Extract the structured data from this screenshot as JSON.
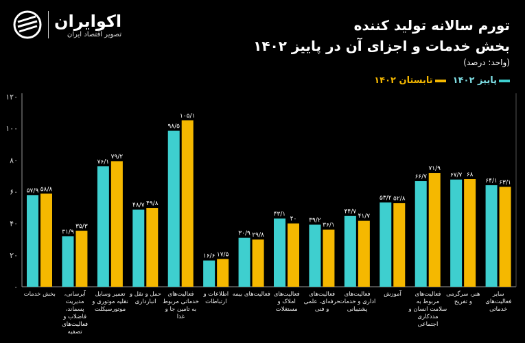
{
  "logo": {
    "name": "اکوایران",
    "tagline": "تصویر اقتصاد ایران"
  },
  "colors": {
    "autumn": "#3ecfcf",
    "summer": "#f5b800",
    "axis": "#bbbbbb"
  },
  "chart_data": {
    "type": "bar",
    "title": "تورم سالانه تولید کننده",
    "subtitle": "بخش خدمات و اجزای آن در پاییز ۱۴۰۲",
    "unit": "(واحد: درصد)",
    "ylim": [
      0,
      120
    ],
    "yticks": [
      0,
      20,
      40,
      60,
      80,
      100,
      120
    ],
    "ytick_labels": [
      "۰",
      "۲۰",
      "۴۰",
      "۶۰",
      "۸۰",
      "۱۰۰",
      "۱۲۰"
    ],
    "grid": false,
    "legend_position": "top-right",
    "categories": [
      "بخش خدمات",
      "آبرسانی، مدیریت پسماند، فاضلاب و فعالیت‌های تصفیه",
      "تعمیر وسایل نقلیه موتوری و موتورسیکلت",
      "حمل و نقل و انبارداری",
      "فعالیت‌های خدماتی مربوط به تامین جا و غذا",
      "اطلاعات و ارتباطات",
      "فعالیت‌های بیمه",
      "فعالیت‌های املاک و مستغلات",
      "فعالیت‌های حرفه‌ای، علمی و فنی",
      "فعالیت‌های اداری و خدمات پشتیبانی",
      "آموزش",
      "فعالیت‌های مربوط به سلامت انسان و مددکاری اجتماعی",
      "هنر، سرگرمی و تفریح",
      "سایر فعالیت‌های خدماتی"
    ],
    "series": [
      {
        "name": "پاییز ۱۴۰۲",
        "values": [
          57.9,
          31.9,
          76.1,
          48.7,
          98.5,
          16.6,
          30.9,
          43.1,
          39.2,
          44.7,
          53.2,
          66.7,
          67.7,
          64.1
        ],
        "labels": [
          "۵۷/۹",
          "۳۱/۹",
          "۷۶/۱",
          "۴۸/۷",
          "۹۸/۵",
          "۱۶/۶",
          "۳۰/۹",
          "۴۳/۱",
          "۳۹/۲",
          "۴۴/۷",
          "۵۳/۲",
          "۶۶/۷",
          "۶۷/۷",
          "۶۴/۱"
        ]
      },
      {
        "name": "تابستان ۱۴۰۲",
        "values": [
          58.8,
          35.3,
          79.2,
          49.8,
          105.1,
          17.5,
          29.8,
          40,
          36.1,
          41.7,
          52.8,
          71.9,
          68,
          63.1
        ],
        "labels": [
          "۵۸/۸",
          "۳۵/۳",
          "۷۹/۲",
          "۴۹/۸",
          "۱۰۵/۱",
          "۱۷/۵",
          "۲۹/۸",
          "۴۰",
          "۳۶/۱",
          "۴۱/۷",
          "۵۲/۸",
          "۷۱/۹",
          "۶۸",
          "۶۳/۱"
        ]
      }
    ]
  }
}
